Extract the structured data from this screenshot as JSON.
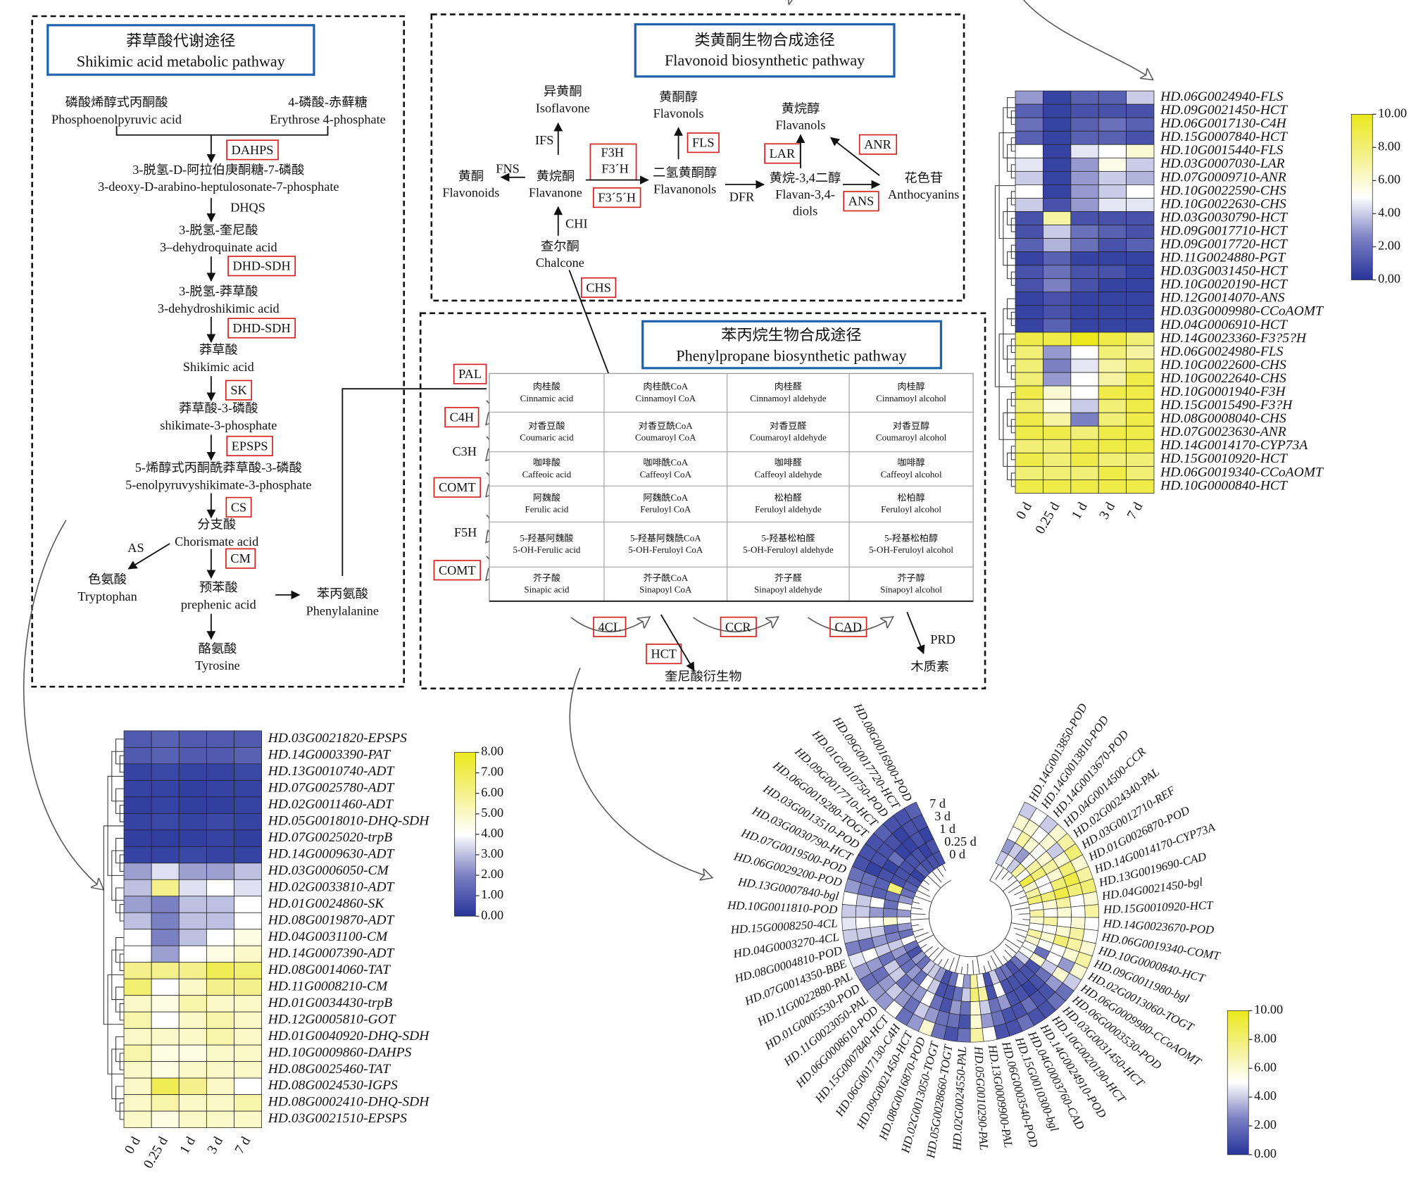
{
  "shikimic_pathway": {
    "title": [
      "莽草酸代谢途径",
      "Shikimic acid metabolic pathway"
    ],
    "compounds": [
      [
        "磷酸烯醇式丙酮酸",
        "Phosphoenolpyruvic acid"
      ],
      [
        "4-磷酸-赤藓糖",
        "Erythrose 4-phosphate"
      ],
      [
        "3-脱氢-D-阿拉伯庚酮糖-7-磷酸",
        "3-deoxy-D-arabino-heptulosonate-7-phosphate"
      ],
      [
        "3-脱氢-奎尼酸",
        "3–dehydroquinate acid"
      ],
      [
        "3-脱氢-莽草酸",
        "3-dehydroshikimic acid"
      ],
      [
        "莽草酸",
        "Shikimic acid"
      ],
      [
        "莽草酸-3-磷酸",
        "shikimate-3-phosphate"
      ],
      [
        "5-烯醇式丙酮酰莽草酸-3-磷酸",
        "5-enolpyruvyshikimate-3-phosphate"
      ],
      [
        "分支酸",
        "Chorismate acid"
      ],
      [
        "色氨酸",
        "Tryptophan"
      ],
      [
        "预苯酸",
        "prephenic acid"
      ],
      [
        "苯丙氨酸",
        "Phenylalanine"
      ],
      [
        "酪氨酸",
        "Tyrosine"
      ]
    ],
    "enzymes": [
      "DAHPS",
      "DHQS",
      "DHD-SDH",
      "DHD-SDH",
      "SK",
      "EPSPS",
      "CS",
      "AS",
      "CM"
    ]
  },
  "flavonoid_pathway": {
    "title": [
      "类黄酮生物合成途径",
      "Flavonoid biosynthetic pathway"
    ],
    "compounds": [
      [
        "异黄酮",
        "Isoflavone"
      ],
      [
        "黄酮",
        "Flavonoids"
      ],
      [
        "黄烷酮",
        "Flavanone"
      ],
      [
        "黄酮醇",
        "Flavonols"
      ],
      [
        "二氢黄酮醇",
        "Flavanonols"
      ],
      [
        "查尔酮",
        "Chalcone"
      ],
      [
        "黄烷醇",
        "Flavanols"
      ],
      [
        "黄烷-3,4二醇",
        "Flavan-3,4-",
        "diols"
      ],
      [
        "花色苷",
        "Anthocyanins"
      ]
    ],
    "enzymes": [
      "IFS",
      "FNS",
      "CHI",
      "F3H",
      "F3´H",
      "F3´5´H",
      "FLS",
      "DFR",
      "LAR",
      "ANR",
      "ANS",
      "CHS"
    ]
  },
  "phenylpropane_pathway": {
    "title": [
      "苯丙烷生物合成途径",
      "Phenylpropane biosynthetic pathway"
    ],
    "table": [
      [
        [
          "肉桂酸",
          "Cinnamic acid"
        ],
        [
          "肉桂酰CoA",
          "Cinnamoyl CoA"
        ],
        [
          "肉桂醛",
          "Cinnamoyl aldehyde"
        ],
        [
          "肉桂醇",
          "Cinnamoyl alcohol"
        ]
      ],
      [
        [
          "对香豆酸",
          "Coumaric acid"
        ],
        [
          "对香豆酰CoA",
          "Coumaroyl CoA"
        ],
        [
          "对香豆醛",
          "Coumaroyl aldehyde"
        ],
        [
          "对香豆醇",
          "Coumaroyl alcohol"
        ]
      ],
      [
        [
          "咖啡酸",
          "Caffeoic acid"
        ],
        [
          "咖啡酰CoA",
          "Caffeoyl CoA"
        ],
        [
          "咖啡醛",
          "Caffeoyl aldehyde"
        ],
        [
          "咖啡醇",
          "Caffeoyl alcohol"
        ]
      ],
      [
        [
          "阿魏酸",
          "Ferulic acid"
        ],
        [
          "阿魏酰CoA",
          "Feruloyl CoA"
        ],
        [
          "松柏醛",
          "Feruloyl aldehyde"
        ],
        [
          "松柏醇",
          "Feruloyl alcohol"
        ]
      ],
      [
        [
          "5-羟基阿魏酸",
          "5-OH-Ferulic acid"
        ],
        [
          "5-羟基阿魏酰CoA",
          "5-OH-Feruloyl CoA"
        ],
        [
          "5-羟基松柏醛",
          "5-OH-Feruloyl aldehyde"
        ],
        [
          "5-羟基松柏醇",
          "5-OH-Feruloyl alcohol"
        ]
      ],
      [
        [
          "芥子酸",
          "Sinapic acid"
        ],
        [
          "芥子酰CoA",
          "Sinapoyl CoA"
        ],
        [
          "芥子醛",
          "Sinapoyl aldehyde"
        ],
        [
          "芥子醇",
          "Sinapoyl alcohol"
        ]
      ]
    ],
    "enzymes": [
      "PAL",
      "C4H",
      "C3H",
      "COMT",
      "F5H",
      "COMT",
      "4CL",
      "CCR",
      "CAD",
      "HCT",
      "PRD"
    ],
    "products": [
      "奎尼酸衍生物",
      "木质素"
    ]
  },
  "chart_data": [
    {
      "type": "heatmap",
      "rows": [
        "HD.06G0024940-FLS",
        "HD.09G0021450-HCT",
        "HD.06G0017130-C4H",
        "HD.15G0007840-HCT",
        "HD.10G0015440-FLS",
        "HD.03G0007030-LAR",
        "HD.07G0009710-ANR",
        "HD.10G0022590-CHS",
        "HD.10G0022630-CHS",
        "HD.03G0030790-HCT",
        "HD.09G0017710-HCT",
        "HD.09G0017720-HCT",
        "HD.11G0024880-PGT",
        "HD.03G0031450-HCT",
        "HD.10G0020190-HCT",
        "HD.12G0014070-ANS",
        "HD.03G0009980-CCoAOMT",
        "HD.04G0006910-HCT",
        "HD.14G0023360-F3?5?H",
        "HD.06G0024980-FLS",
        "HD.10G0022600-CHS",
        "HD.10G0022640-CHS",
        "HD.10G0001940-F3H",
        "HD.15G0015490-F3?H",
        "HD.08G0008040-CHS",
        "HD.07G0023630-ANR",
        "HD.14G0014170-CYP73A",
        "HD.15G0010920-HCT",
        "HD.06G0019340-CCoAOMT",
        "HD.10G0000840-HCT"
      ],
      "columns": [
        "0 d",
        "0.25 d",
        "1 d",
        "3 d",
        "7 d"
      ],
      "values": [
        [
          3,
          0.5,
          1.5,
          1.5,
          4
        ],
        [
          1.5,
          0.5,
          1,
          1,
          1
        ],
        [
          2,
          0.5,
          1.5,
          2,
          1.5
        ],
        [
          1.5,
          0.5,
          1.5,
          1.5,
          1
        ],
        [
          5,
          0.5,
          4.5,
          5,
          6
        ],
        [
          4.5,
          0.5,
          3,
          5.5,
          4
        ],
        [
          4,
          0.5,
          3,
          4,
          3.5
        ],
        [
          5,
          0.5,
          3,
          4,
          5
        ],
        [
          4,
          1,
          3,
          4.5,
          4.5
        ],
        [
          1,
          7,
          1,
          1,
          1
        ],
        [
          1,
          4,
          2,
          1.5,
          1
        ],
        [
          1.5,
          3.5,
          2,
          1,
          1.5
        ],
        [
          0.5,
          1.5,
          0.5,
          0.5,
          0.5
        ],
        [
          1,
          2,
          1,
          1,
          0.5
        ],
        [
          1,
          2.5,
          1,
          0.5,
          0.5
        ],
        [
          0.5,
          1,
          0.5,
          0.5,
          0.5
        ],
        [
          0.5,
          1,
          0.5,
          0.5,
          0.5
        ],
        [
          0.5,
          1.5,
          0.5,
          0.5,
          0.5
        ],
        [
          9,
          9,
          10,
          9,
          8
        ],
        [
          8,
          3,
          5,
          8,
          7
        ],
        [
          8,
          2.5,
          4.5,
          7,
          8
        ],
        [
          8,
          3,
          5,
          7,
          9
        ],
        [
          9,
          6,
          5,
          9,
          9
        ],
        [
          8,
          5.5,
          4,
          8,
          9
        ],
        [
          9,
          7,
          2.5,
          8,
          9
        ],
        [
          9,
          9,
          8,
          9,
          9
        ],
        [
          8,
          8,
          9,
          9,
          9
        ],
        [
          9,
          8,
          9,
          8,
          8
        ],
        [
          8,
          8,
          8,
          9,
          8
        ],
        [
          9,
          9,
          9,
          9,
          9
        ]
      ],
      "clim": [
        0,
        10
      ],
      "cticks": [
        {
          "value": 0,
          "label": "0.00"
        },
        {
          "value": 2,
          "label": "2.00"
        },
        {
          "value": 4,
          "label": "4.00"
        },
        {
          "value": 6,
          "label": "6.00"
        },
        {
          "value": 8,
          "label": "8.00"
        },
        {
          "value": 10,
          "label": "10.00"
        }
      ],
      "colormap": [
        "#26349a",
        "#7b80c2",
        "#ffffff",
        "#f4f18c",
        "#ece81c"
      ]
    },
    {
      "type": "heatmap",
      "rows": [
        "HD.03G0021820-EPSPS",
        "HD.14G0003390-PAT",
        "HD.13G0010740-ADT",
        "HD.07G0025780-ADT",
        "HD.02G0011460-ADT",
        "HD.05G0018010-DHQ-SDH",
        "HD.07G0025020-trpB",
        "HD.14G0009630-ADT",
        "HD.03G0006050-CM",
        "HD.02G0033810-ADT",
        "HD.01G0024860-SK",
        "HD.08G0019870-ADT",
        "HD.04G0031100-CM",
        "HD.14G0007390-ADT",
        "HD.08G0014060-TAT",
        "HD.11G0008210-CM",
        "HD.01G0034430-trpB",
        "HD.12G0005810-GOT",
        "HD.01G0040920-DHQ-SDH",
        "HD.10G0009860-DAHPS",
        "HD.08G0025460-TAT",
        "HD.08G0024530-IGPS",
        "HD.08G0002410-DHQ-SDH",
        "HD.03G0021510-EPSPS"
      ],
      "columns": [
        "0 d",
        "0.25 d",
        "1 d",
        "3 d",
        "7 d"
      ],
      "values": [
        [
          1,
          1.2,
          1,
          1,
          1
        ],
        [
          1,
          1.2,
          1,
          1,
          1.2
        ],
        [
          0.4,
          0.5,
          0.4,
          0.4,
          0.5
        ],
        [
          0.4,
          0.4,
          0.3,
          0.4,
          0.4
        ],
        [
          0.3,
          0.4,
          0.3,
          0.3,
          0.4
        ],
        [
          0.4,
          0.5,
          0.4,
          0.5,
          0.4
        ],
        [
          0.3,
          0.3,
          0.3,
          0.4,
          0.3
        ],
        [
          0.4,
          0.4,
          0.5,
          0.4,
          0.4
        ],
        [
          2.5,
          3.5,
          2.5,
          2.5,
          3
        ],
        [
          3,
          6,
          3.5,
          4,
          3.5
        ],
        [
          2.5,
          2,
          3,
          3,
          4
        ],
        [
          3,
          2,
          3,
          3,
          4
        ],
        [
          4,
          2,
          3,
          4,
          4.5
        ],
        [
          4,
          2.5,
          4,
          4.5,
          5
        ],
        [
          6,
          6,
          6,
          7,
          6.5
        ],
        [
          6.5,
          4,
          5,
          6,
          6
        ],
        [
          5,
          4.5,
          5.5,
          5,
          5
        ],
        [
          5.5,
          4,
          5,
          5.5,
          5
        ],
        [
          5,
          5,
          5,
          5.5,
          5
        ],
        [
          5.5,
          4.5,
          4.5,
          5,
          5
        ],
        [
          5,
          4.5,
          5,
          5,
          5
        ],
        [
          5,
          7,
          6,
          5,
          4
        ],
        [
          5,
          5.5,
          5,
          5,
          5.5
        ],
        [
          5,
          4.5,
          5,
          5,
          5
        ]
      ],
      "clim": [
        0,
        8
      ],
      "cticks": [
        {
          "value": 0,
          "label": "0.00"
        },
        {
          "value": 1,
          "label": "1.00"
        },
        {
          "value": 2,
          "label": "2.00"
        },
        {
          "value": 3,
          "label": "3.00"
        },
        {
          "value": 4,
          "label": "4.00"
        },
        {
          "value": 5,
          "label": "5.00"
        },
        {
          "value": 6,
          "label": "6.00"
        },
        {
          "value": 7,
          "label": "7.00"
        },
        {
          "value": 8,
          "label": "8.00"
        }
      ],
      "colormap": [
        "#26349a",
        "#7b80c2",
        "#ffffff",
        "#f4f18c",
        "#ece81c"
      ]
    },
    {
      "type": "circular-heatmap",
      "rows": [
        "HD.08G0016900-POD",
        "HD.09G0017720-HCT",
        "HD.01G0010750-POD",
        "HD.09G0017710-HCT",
        "HD.06G0019280-TOGT",
        "HD.03G0013510-POD",
        "HD.03G0030790-HCT",
        "HD.07G0019500-POD",
        "HD.06G0029200-POD",
        "HD.13G0007840-bgl",
        "HD.10G0011810-POD",
        "HD.15G0008250-4CL",
        "HD.04G0003270-4CL",
        "HD.08G0004810-POD",
        "HD.07G0014350-BBE",
        "HD.11G0022880-PAL",
        "HD.01G0005530-POD",
        "HD.11G0023050-PAL",
        "HD.06G0008610-POD",
        "HD.15G0007840-HCT",
        "HD.06G0017130-C4H",
        "HD.09G0021450-HCT",
        "HD.08G0016870-POD",
        "HD.02G0013050-TOGT",
        "HD.05G0028660-TOGT",
        "HD.02G0024550-PAL",
        "HD.05G0010290-PAL",
        "HD.13G0009900-PAL",
        "HD.06G0003540-POD",
        "HD.15G0010300-bgl",
        "HD.04G0003760-CAD",
        "HD.14G0024910-POD",
        "HD.10G0020190-HCT",
        "HD.03G0031450-HCT",
        "HD.06G0003530-POD",
        "HD.06G0009980-CCoAOMT",
        "HD.02G0013060-TOGT",
        "HD.09G0011980-bgl",
        "HD.10G0000840-HCT",
        "HD.06G0019340-COMT",
        "HD.14G0023670-POD",
        "HD.15G0010920-HCT",
        "HD.04G0021450-bgl",
        "HD.13G0019690-CAD",
        "HD.14G0014170-CYP73A",
        "HD.01G0026870-POD",
        "HD.03G0012710-REF",
        "HD.02G0024340-PAL",
        "HD.04G0014500-CCR",
        "HD.14G0013670-POD",
        "HD.14G0013810-POD",
        "HD.14G0013850-POD"
      ],
      "columns": [
        "0 d",
        "0.25 d",
        "1 d",
        "3 d",
        "7 d"
      ],
      "values": [
        [
          1,
          1,
          0.5,
          1,
          1.5
        ],
        [
          1,
          0.5,
          1,
          1,
          1
        ],
        [
          1,
          1,
          0.5,
          0.5,
          1
        ],
        [
          1.5,
          1,
          0.5,
          1,
          1.5
        ],
        [
          0.5,
          1,
          2,
          1,
          1
        ],
        [
          1,
          1,
          0.5,
          1,
          1
        ],
        [
          1.5,
          1,
          1,
          0.5,
          1
        ],
        [
          2,
          8,
          1.5,
          2,
          2
        ],
        [
          3,
          2,
          1.5,
          2,
          3
        ],
        [
          5,
          2,
          5,
          4,
          5
        ],
        [
          3,
          2.5,
          3,
          4,
          4
        ],
        [
          5,
          6,
          5,
          5,
          4.5
        ],
        [
          3,
          2,
          4,
          4,
          4
        ],
        [
          2,
          2.5,
          3,
          2,
          2.5
        ],
        [
          5,
          4,
          4,
          5,
          4.5
        ],
        [
          2,
          3,
          2,
          3,
          3
        ],
        [
          1,
          2,
          4,
          2,
          2
        ],
        [
          3,
          2,
          4,
          3,
          3
        ],
        [
          2,
          3,
          2,
          4,
          3
        ],
        [
          4,
          2,
          3,
          3,
          5
        ],
        [
          4,
          5,
          3,
          2,
          2
        ],
        [
          3,
          4,
          5,
          4,
          3
        ],
        [
          1,
          1,
          2,
          3,
          6
        ],
        [
          2,
          1,
          1,
          2,
          2
        ],
        [
          5,
          2,
          3,
          2,
          1
        ],
        [
          3,
          4,
          2,
          1,
          2
        ],
        [
          7,
          8,
          6,
          6,
          7
        ],
        [
          5,
          7,
          4,
          3,
          5
        ],
        [
          1,
          1,
          2,
          2,
          1
        ],
        [
          4,
          5,
          3,
          1,
          1
        ],
        [
          2,
          1,
          1,
          1,
          2
        ],
        [
          2,
          1,
          1,
          2,
          1
        ],
        [
          1,
          1,
          0.5,
          1,
          1
        ],
        [
          2,
          1,
          1,
          1,
          2
        ],
        [
          4,
          1,
          2,
          3,
          2
        ],
        [
          5,
          6,
          4,
          6,
          4
        ],
        [
          5,
          2,
          5,
          3,
          6
        ],
        [
          6,
          5,
          5,
          6,
          7
        ],
        [
          7,
          6,
          8,
          7,
          6
        ],
        [
          5,
          5,
          6,
          7,
          5
        ],
        [
          6,
          7,
          5,
          6,
          5
        ],
        [
          7,
          5,
          6,
          5,
          7
        ],
        [
          5,
          6,
          7,
          5,
          6
        ],
        [
          8,
          8,
          9,
          8,
          8
        ],
        [
          7,
          5,
          8,
          9,
          7
        ],
        [
          6,
          5,
          6,
          8,
          6
        ],
        [
          9,
          8,
          7,
          6,
          8
        ],
        [
          5,
          7,
          6,
          4,
          7
        ],
        [
          7,
          5,
          5,
          6,
          6
        ],
        [
          4,
          3,
          6,
          5,
          4
        ],
        [
          5,
          4,
          7,
          6,
          5
        ],
        [
          4,
          3,
          5,
          6,
          4
        ]
      ],
      "clim": [
        0,
        10
      ],
      "cticks": [
        {
          "value": 0,
          "label": "0.00"
        },
        {
          "value": 2,
          "label": "2.00"
        },
        {
          "value": 4,
          "label": "4.00"
        },
        {
          "value": 6,
          "label": "6.00"
        },
        {
          "value": 8,
          "label": "8.00"
        },
        {
          "value": 10,
          "label": "10.00"
        }
      ],
      "colormap": [
        "#26349a",
        "#7b80c2",
        "#ffffff",
        "#f4f18c",
        "#ece81c"
      ]
    }
  ]
}
